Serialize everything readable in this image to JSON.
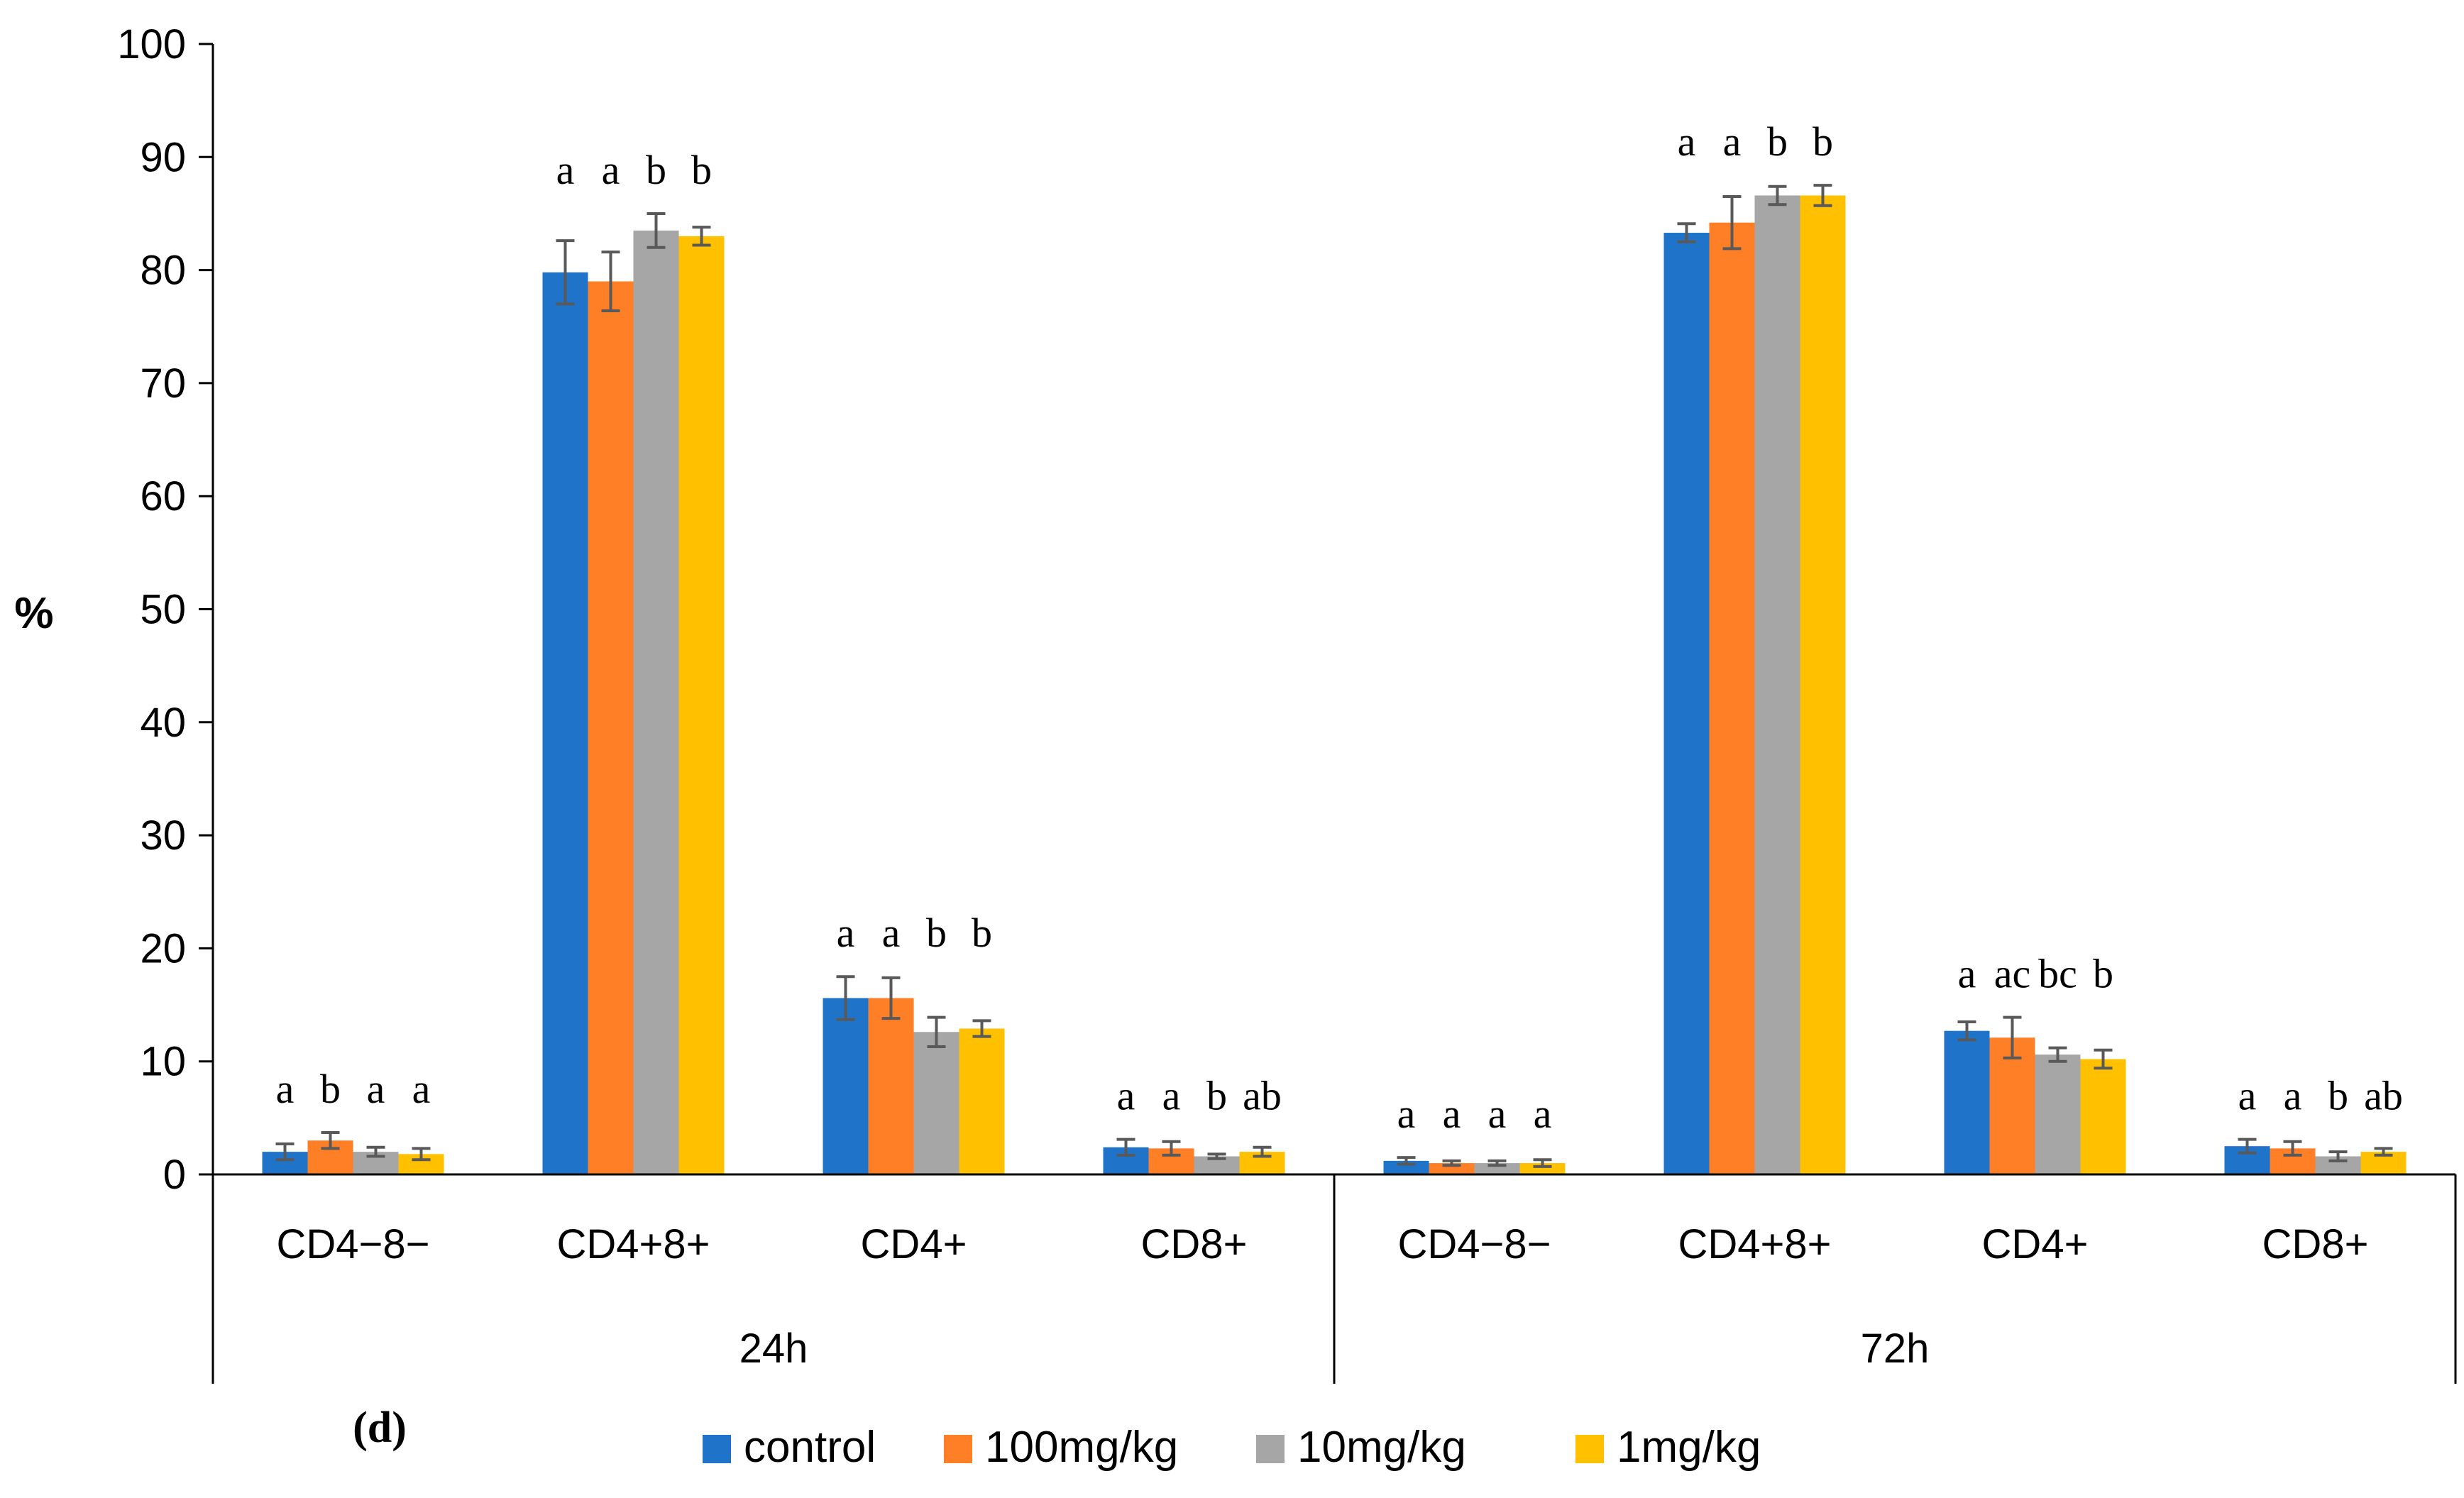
{
  "chart_data": {
    "type": "bar",
    "title": "",
    "panel_label": "(d)",
    "ylabel": "%",
    "xlabel": "",
    "ylim": [
      0,
      100
    ],
    "yticks": [
      0,
      10,
      20,
      30,
      40,
      50,
      60,
      70,
      80,
      90,
      100
    ],
    "grid": false,
    "legend_position": "bottom",
    "groups": [
      {
        "name": "24h",
        "categories": [
          "CD4−8−",
          "CD4+8+",
          "CD4+",
          "CD8+"
        ]
      },
      {
        "name": "72h",
        "categories": [
          "CD4−8−",
          "CD4+8+",
          "CD4+",
          "CD8+"
        ]
      }
    ],
    "categories": [
      "CD4−8−",
      "CD4+8+",
      "CD4+",
      "CD8+",
      "CD4−8−",
      "CD4+8+",
      "CD4+",
      "CD8+"
    ],
    "series": [
      {
        "name": "control",
        "color": "#1F74C9",
        "values": [
          2.0,
          79.8,
          15.6,
          2.4,
          1.2,
          83.3,
          12.7,
          2.5
        ],
        "errors": [
          0.7,
          2.8,
          1.9,
          0.7,
          0.3,
          0.8,
          0.8,
          0.6
        ]
      },
      {
        "name": "100mg/kg",
        "color": "#FF7F27",
        "values": [
          3.0,
          79.0,
          15.6,
          2.3,
          1.0,
          84.2,
          12.1,
          2.3
        ],
        "errors": [
          0.7,
          2.6,
          1.8,
          0.6,
          0.2,
          2.3,
          1.8,
          0.6
        ]
      },
      {
        "name": "10mg/kg",
        "color": "#A6A6A6",
        "values": [
          2.0,
          83.5,
          12.6,
          1.6,
          1.0,
          86.6,
          10.6,
          1.6
        ],
        "errors": [
          0.4,
          1.5,
          1.3,
          0.2,
          0.2,
          0.8,
          0.6,
          0.4
        ]
      },
      {
        "name": "1mg/kg",
        "color": "#FFC000",
        "values": [
          1.8,
          83.0,
          12.9,
          2.0,
          1.0,
          86.6,
          10.2,
          2.0
        ],
        "errors": [
          0.5,
          0.8,
          0.7,
          0.4,
          0.3,
          0.9,
          0.8,
          0.3
        ]
      }
    ],
    "significance": [
      [
        "a",
        "b",
        "a",
        "a"
      ],
      [
        "a",
        "a",
        "b",
        "b"
      ],
      [
        "a",
        "a",
        "b",
        "b"
      ],
      [
        "a",
        "a",
        "b",
        "ab"
      ],
      [
        "a",
        "a",
        "a",
        "a"
      ],
      [
        "a",
        "a",
        "b",
        "b"
      ],
      [
        "a",
        "ac",
        "bc",
        "b"
      ],
      [
        "a",
        "a",
        "b",
        "ab"
      ]
    ]
  }
}
